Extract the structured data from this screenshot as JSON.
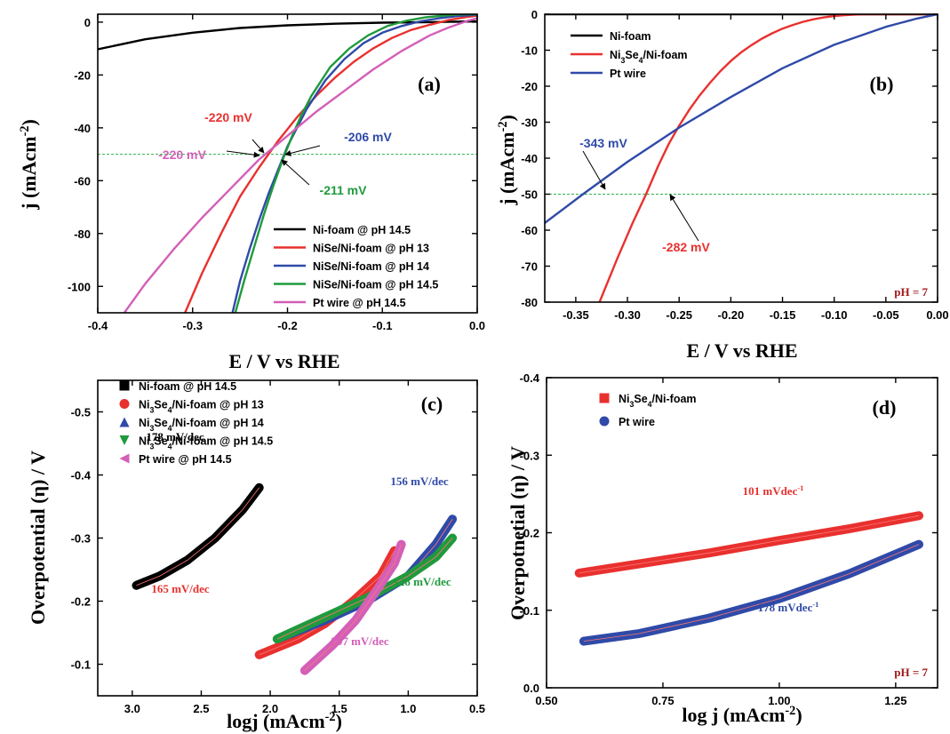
{
  "chart_data": [
    {
      "type": "line",
      "panel_label": "(a)",
      "xlabel": "E / V vs RHE",
      "ylabel": "j (mAcm-2)",
      "xlim": [
        -0.4,
        0.0
      ],
      "ylim": [
        -110,
        3
      ],
      "xticks": [
        -0.4,
        -0.3,
        -0.2,
        -0.1,
        0.0
      ],
      "xtick_labels": [
        "-0.4",
        "-0.3",
        "-0.2",
        "-0.1",
        "0.0"
      ],
      "yticks": [
        0,
        -20,
        -40,
        -60,
        -80,
        -100
      ],
      "ytick_labels": [
        "0",
        "-20",
        "-40",
        "-60",
        "-80",
        "-100"
      ],
      "legend_position": "bottom-right",
      "reference_line": {
        "y": -50,
        "color": "#2fb24a",
        "style": "dashed"
      },
      "series": [
        {
          "name": "Ni-foam @ pH 14.5",
          "color": "#000000",
          "x": [
            -0.4,
            -0.35,
            -0.3,
            -0.25,
            -0.2,
            -0.15,
            -0.1,
            -0.05,
            0.0
          ],
          "y": [
            -10.3,
            -6.5,
            -4.0,
            -2.2,
            -1.2,
            -0.6,
            -0.2,
            0.0,
            0.3
          ]
        },
        {
          "name": "NiSe/Ni-foam @ pH 13",
          "color": "#e8312f",
          "x": [
            -0.308,
            -0.29,
            -0.27,
            -0.25,
            -0.23,
            -0.21,
            -0.19,
            -0.17,
            -0.15,
            -0.13,
            -0.11,
            -0.09,
            -0.07,
            -0.05,
            -0.03,
            -0.01,
            0.0
          ],
          "y": [
            -110,
            -95,
            -80,
            -66,
            -55,
            -45,
            -36,
            -28,
            -21,
            -15,
            -10,
            -6,
            -3,
            -1,
            0.8,
            2,
            2.5
          ]
        },
        {
          "name": "NiSe/Ni-foam @ pH 14",
          "color": "#2f4aa8",
          "x": [
            -0.258,
            -0.25,
            -0.24,
            -0.23,
            -0.22,
            -0.21,
            -0.2,
            -0.19,
            -0.18,
            -0.16,
            -0.14,
            -0.12,
            -0.1,
            -0.08,
            -0.06,
            -0.04,
            -0.02,
            0.0
          ],
          "y": [
            -110,
            -98,
            -86,
            -75,
            -65,
            -56,
            -47,
            -40,
            -33,
            -22,
            -14,
            -8,
            -4,
            -1.5,
            0.3,
            1.5,
            2.3,
            2.8
          ]
        },
        {
          "name": "NiSe/Ni-foam @ pH 14.5",
          "color": "#1f9a3c",
          "x": [
            -0.255,
            -0.245,
            -0.235,
            -0.225,
            -0.215,
            -0.205,
            -0.195,
            -0.185,
            -0.175,
            -0.155,
            -0.135,
            -0.115,
            -0.095,
            -0.075,
            -0.055,
            -0.035,
            -0.015,
            0.0
          ],
          "y": [
            -110,
            -97,
            -85,
            -73,
            -62,
            -52,
            -43,
            -35,
            -28,
            -17,
            -10,
            -5,
            -1.5,
            0.5,
            1.8,
            2.5,
            3,
            3
          ]
        },
        {
          "name": "Pt wire @ pH 14.5",
          "color": "#d35fb8",
          "x": [
            -0.372,
            -0.35,
            -0.32,
            -0.29,
            -0.26,
            -0.23,
            -0.2,
            -0.17,
            -0.14,
            -0.11,
            -0.08,
            -0.05,
            -0.03,
            -0.01,
            0.0
          ],
          "y": [
            -110,
            -99,
            -86,
            -74,
            -63,
            -52,
            -43,
            -34,
            -26,
            -18,
            -11,
            -5,
            -2,
            0.5,
            1.5
          ]
        }
      ],
      "annotations": [
        {
          "text": "-220 mV",
          "color": "#e8312f"
        },
        {
          "text": "-220 mV",
          "color": "#d35fb8"
        },
        {
          "text": "-206 mV",
          "color": "#2f4aa8"
        },
        {
          "text": "-211 mV",
          "color": "#1f9a3c"
        }
      ]
    },
    {
      "type": "line",
      "panel_label": "(b)",
      "xlabel": "E / V vs RHE",
      "ylabel": "j (mAcm-2)",
      "xlim": [
        -0.38,
        0.0
      ],
      "ylim": [
        -80,
        0
      ],
      "xticks": [
        -0.35,
        -0.3,
        -0.25,
        -0.2,
        -0.15,
        -0.1,
        -0.05,
        0.0
      ],
      "xtick_labels": [
        "-0.35",
        "-0.30",
        "-0.25",
        "-0.20",
        "-0.15",
        "-0.10",
        "-0.05",
        "0.00"
      ],
      "yticks": [
        0,
        -10,
        -20,
        -30,
        -40,
        -50,
        -60,
        -70,
        -80
      ],
      "ytick_labels": [
        "0",
        "-10",
        "-20",
        "-30",
        "-40",
        "-50",
        "-60",
        "-70",
        "-80"
      ],
      "legend_position": "top-left",
      "note": "pH = 7",
      "reference_line": {
        "y": -50,
        "color": "#2fb24a",
        "style": "dashed"
      },
      "series": [
        {
          "name": "Ni-foam",
          "color": "#000000",
          "x": [
            -0.38,
            -0.3,
            -0.2,
            -0.1,
            0.0
          ],
          "y": [
            0,
            0,
            0,
            0,
            0
          ]
        },
        {
          "name": "Ni3Se4/Ni-foam",
          "color": "#e8312f",
          "x": [
            -0.327,
            -0.31,
            -0.295,
            -0.282,
            -0.27,
            -0.26,
            -0.25,
            -0.24,
            -0.23,
            -0.22,
            -0.21,
            -0.2,
            -0.19,
            -0.18,
            -0.17,
            -0.16,
            -0.15,
            -0.14,
            -0.13,
            -0.12,
            -0.11,
            -0.1,
            -0.09,
            -0.08,
            -0.07,
            -0.06,
            -0.05,
            0.0
          ],
          "y": [
            -80,
            -68,
            -58,
            -50,
            -42,
            -36,
            -31,
            -26.5,
            -22.5,
            -19,
            -15.8,
            -13,
            -10.6,
            -8.6,
            -6.8,
            -5.3,
            -4,
            -3,
            -2.1,
            -1.4,
            -0.9,
            -0.5,
            -0.25,
            -0.1,
            -0.03,
            0,
            0,
            0
          ]
        },
        {
          "name": "Pt wire",
          "color": "#2f4aa8",
          "x": [
            -0.38,
            -0.343,
            -0.3,
            -0.25,
            -0.2,
            -0.15,
            -0.1,
            -0.05,
            -0.02,
            0.0
          ],
          "y": [
            -58,
            -50,
            -41,
            -31.5,
            -23,
            -15,
            -8.5,
            -3.5,
            -1.2,
            0
          ]
        }
      ],
      "annotations": [
        {
          "text": "-343 mV",
          "color": "#2f4aa8"
        },
        {
          "text": "-282 mV",
          "color": "#e8312f"
        }
      ]
    },
    {
      "type": "line",
      "panel_label": "(c)",
      "xlabel": "logj (mAcm-2)",
      "ylabel": "Overpotential (η) / V",
      "xlim": [
        3.25,
        0.5
      ],
      "ylim": [
        -0.05,
        -0.55
      ],
      "xticks": [
        3.0,
        2.5,
        2.0,
        1.5,
        1.0,
        0.5
      ],
      "xtick_labels": [
        "3.0",
        "2.5",
        "2.0",
        "1.5",
        "1.0",
        "0.5"
      ],
      "yticks": [
        -0.1,
        -0.2,
        -0.3,
        -0.4,
        -0.5
      ],
      "ytick_labels": [
        "-0.1",
        "-0.2",
        "-0.3",
        "-0.4",
        "-0.5"
      ],
      "legend_position": "top-left",
      "series": [
        {
          "name": "Ni-foam @ pH 14.5",
          "color": "#000000",
          "marker": "square",
          "x": [
            2.97,
            2.8,
            2.6,
            2.4,
            2.2,
            2.08
          ],
          "y": [
            -0.225,
            -0.24,
            -0.265,
            -0.3,
            -0.345,
            -0.38
          ]
        },
        {
          "name": "Ni3Se4/Ni-foam @ pH 13",
          "color": "#e8312f",
          "marker": "circle",
          "x": [
            2.08,
            1.8,
            1.6,
            1.4,
            1.2,
            1.1
          ],
          "y": [
            -0.115,
            -0.14,
            -0.165,
            -0.2,
            -0.24,
            -0.28
          ]
        },
        {
          "name": "Ni3Se4/Ni-foam @ pH 14",
          "color": "#2f4aa8",
          "marker": "triangle-up",
          "x": [
            1.95,
            1.6,
            1.3,
            1.0,
            0.8,
            0.68
          ],
          "y": [
            -0.14,
            -0.17,
            -0.2,
            -0.24,
            -0.29,
            -0.33
          ]
        },
        {
          "name": "Ni3Se4/Ni-foam @ pH 14.5",
          "color": "#1f9a3c",
          "marker": "triangle-down",
          "x": [
            1.95,
            1.6,
            1.3,
            1.0,
            0.8,
            0.68
          ],
          "y": [
            -0.14,
            -0.175,
            -0.205,
            -0.24,
            -0.27,
            -0.3
          ]
        },
        {
          "name": "Pt wire @ pH 14.5",
          "color": "#d35fb8",
          "marker": "triangle-left",
          "x": [
            1.75,
            1.55,
            1.38,
            1.22,
            1.1,
            1.05
          ],
          "y": [
            -0.09,
            -0.13,
            -0.17,
            -0.22,
            -0.26,
            -0.29
          ]
        }
      ],
      "annotations": [
        {
          "text": "178 mV/dec",
          "color": "#000000"
        },
        {
          "text": "165 mV/dec",
          "color": "#e8312f"
        },
        {
          "text": "156 mV/dec",
          "color": "#2f4aa8"
        },
        {
          "text": "128 mV/dec",
          "color": "#1f9a3c"
        },
        {
          "text": "297 mV/dec",
          "color": "#d35fb8"
        }
      ]
    },
    {
      "type": "line",
      "panel_label": "(d)",
      "xlabel": "log j (mAcm-2)",
      "ylabel": "Overpotnetial (η) / V",
      "xlim": [
        0.5,
        1.34
      ],
      "ylim": [
        0.0,
        -0.4
      ],
      "xticks": [
        0.5,
        0.75,
        1.0,
        1.25
      ],
      "xtick_labels": [
        "0.50",
        "0.75",
        "1.00",
        "1.25"
      ],
      "yticks": [
        0.0,
        -0.1,
        -0.2,
        -0.3,
        -0.4
      ],
      "ytick_labels": [
        "0.0",
        "-0.1",
        "-0.2",
        "-0.3",
        "-0.4"
      ],
      "legend_position": "top-left",
      "note": "pH = 7",
      "series": [
        {
          "name": "Ni3Se4/Ni-foam",
          "color": "#e8312f",
          "marker": "square",
          "x": [
            0.57,
            0.7,
            0.85,
            1.0,
            1.15,
            1.3
          ],
          "y": [
            -0.148,
            -0.16,
            -0.174,
            -0.19,
            -0.205,
            -0.222
          ]
        },
        {
          "name": "Pt wire",
          "color": "#2f4aa8",
          "marker": "circle",
          "x": [
            0.58,
            0.7,
            0.85,
            1.0,
            1.15,
            1.3
          ],
          "y": [
            -0.06,
            -0.07,
            -0.09,
            -0.115,
            -0.147,
            -0.185
          ]
        }
      ],
      "annotations": [
        {
          "text": "101 mVdec-1",
          "color": "#e8312f"
        },
        {
          "text": "178 mVdec-1",
          "color": "#2f4aa8"
        }
      ]
    }
  ]
}
